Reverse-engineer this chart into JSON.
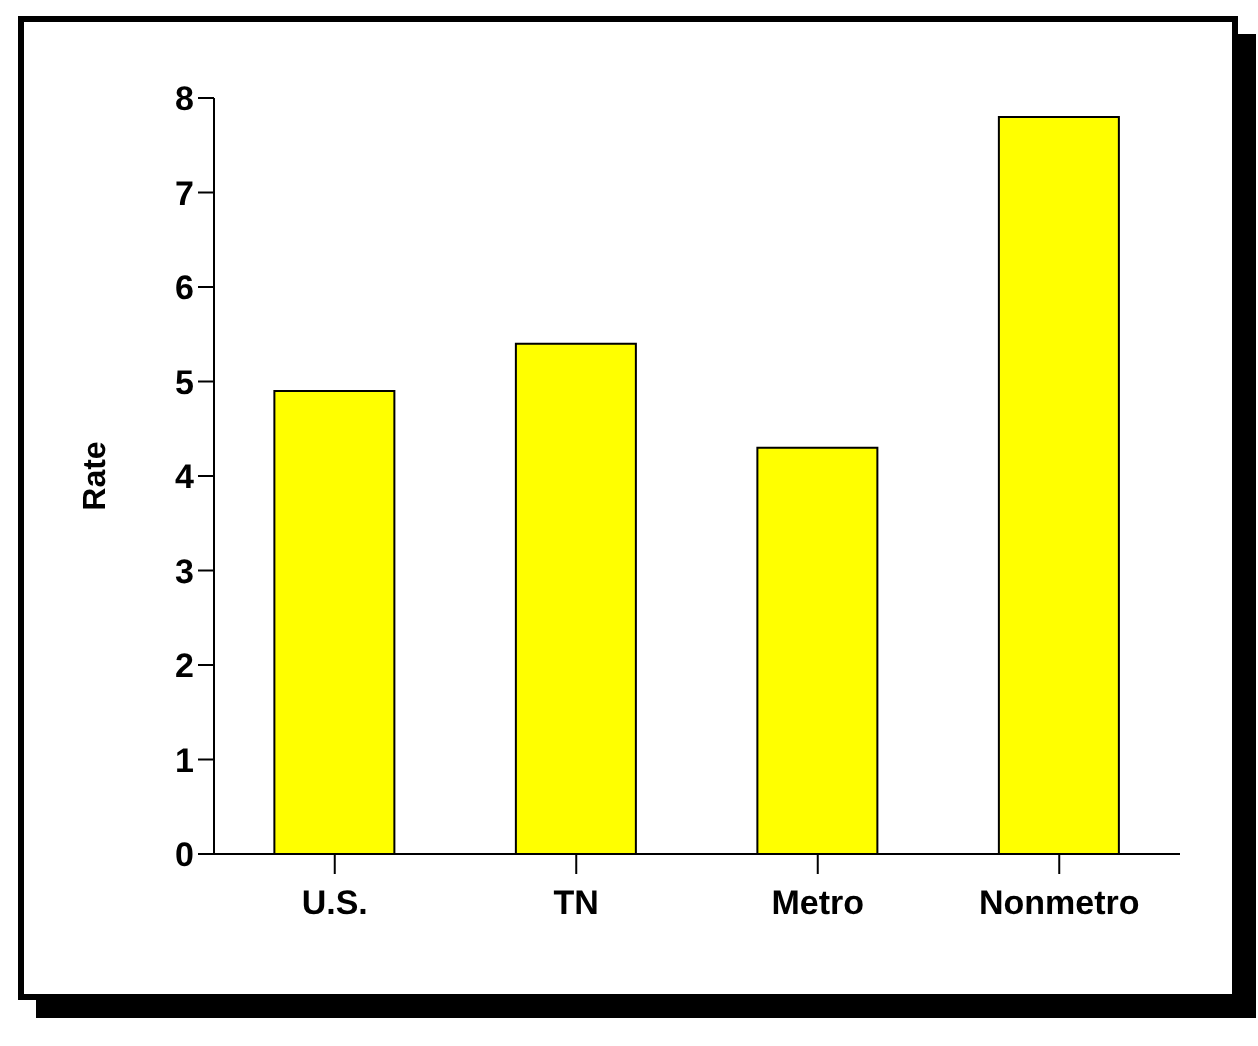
{
  "chart_data": {
    "type": "bar",
    "ylabel": "Rate",
    "categories": [
      "U.S.",
      "TN",
      "Metro",
      "Nonmetro"
    ],
    "values": [
      4.9,
      5.4,
      4.3,
      7.8
    ],
    "color": "#ffff00",
    "ylim": [
      0,
      8
    ],
    "yticks": [
      0,
      1,
      2,
      3,
      4,
      5,
      6,
      7,
      8
    ],
    "grid": false
  }
}
